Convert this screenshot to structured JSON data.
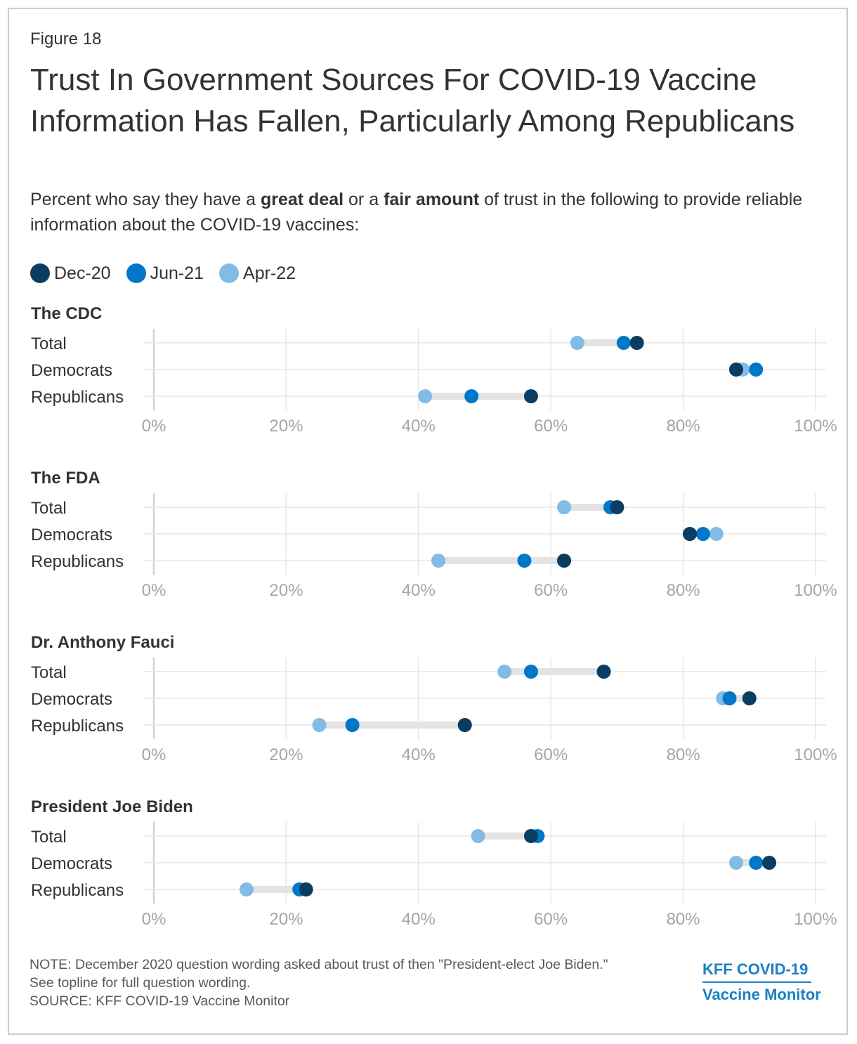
{
  "figure_label": "Figure 18",
  "title": "Trust In Government Sources For COVID-19 Vaccine Information Has Fallen, Particularly Among Republicans",
  "subtitle": {
    "part1": "Percent who say they have a ",
    "bold1": "great deal",
    "part2": " or a ",
    "bold2": "fair amount",
    "part3": " of trust in the following to provide reliable information about the COVID-19 vaccines:"
  },
  "legend": [
    {
      "label": "Dec-20",
      "color": "#0b3c61"
    },
    {
      "label": "Jun-21",
      "color": "#0077c8"
    },
    {
      "label": "Apr-22",
      "color": "#82bce6"
    }
  ],
  "colors": {
    "range_bar": "#e3e3e3",
    "grid": "#e6e6e6",
    "axis": "#cccccc"
  },
  "chart_data": {
    "type": "dot-range",
    "x_axis": {
      "min": 0,
      "max": 100,
      "ticks": [
        "0%",
        "20%",
        "40%",
        "60%",
        "80%",
        "100%"
      ]
    },
    "series_order": [
      "Dec-20",
      "Jun-21",
      "Apr-22"
    ],
    "panels": [
      {
        "title": "The CDC",
        "rows": [
          {
            "label": "Total",
            "values": [
              73,
              71,
              64
            ]
          },
          {
            "label": "Democrats",
            "values": [
              88,
              91,
              89
            ]
          },
          {
            "label": "Republicans",
            "values": [
              57,
              48,
              41
            ]
          }
        ]
      },
      {
        "title": "The FDA",
        "rows": [
          {
            "label": "Total",
            "values": [
              70,
              69,
              62
            ]
          },
          {
            "label": "Democrats",
            "values": [
              81,
              83,
              85
            ]
          },
          {
            "label": "Republicans",
            "values": [
              62,
              56,
              43
            ]
          }
        ]
      },
      {
        "title": "Dr. Anthony Fauci",
        "rows": [
          {
            "label": "Total",
            "values": [
              68,
              57,
              53
            ]
          },
          {
            "label": "Democrats",
            "values": [
              90,
              87,
              86
            ]
          },
          {
            "label": "Republicans",
            "values": [
              47,
              30,
              25
            ]
          }
        ]
      },
      {
        "title": "President Joe Biden",
        "rows": [
          {
            "label": "Total",
            "values": [
              57,
              58,
              49
            ]
          },
          {
            "label": "Democrats",
            "values": [
              93,
              91,
              88
            ]
          },
          {
            "label": "Republicans",
            "values": [
              23,
              22,
              14
            ]
          }
        ]
      }
    ]
  },
  "note": {
    "line1": "NOTE: December 2020 question wording asked about trust of then \"President-elect Joe Biden.\"",
    "line2": "See topline for full question wording.",
    "line3": "SOURCE: KFF COVID-19 Vaccine Monitor"
  },
  "logo": {
    "line1": "KFF COVID-19",
    "line2": "Vaccine Monitor"
  }
}
